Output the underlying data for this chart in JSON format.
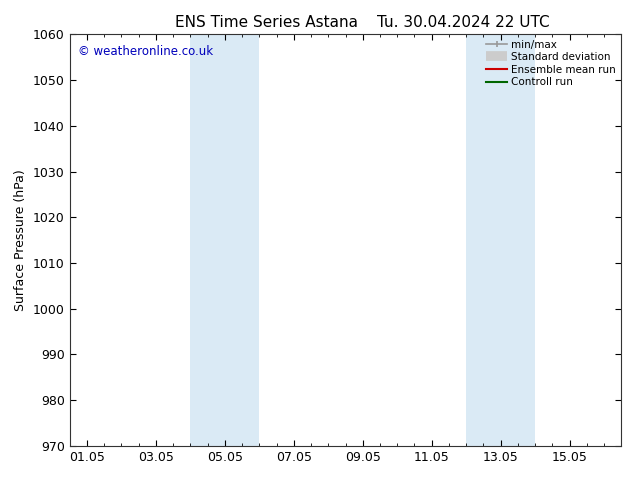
{
  "title_left": "ENS Time Series Astana",
  "title_right": "Tu. 30.04.2024 22 UTC",
  "ylabel": "Surface Pressure (hPa)",
  "ylim": [
    970,
    1060
  ],
  "yticks": [
    970,
    980,
    990,
    1000,
    1010,
    1020,
    1030,
    1040,
    1050,
    1060
  ],
  "xtick_labels": [
    "01.05",
    "03.05",
    "05.05",
    "07.05",
    "09.05",
    "11.05",
    "13.05",
    "15.05"
  ],
  "xtick_positions": [
    0,
    2,
    4,
    6,
    8,
    10,
    12,
    14
  ],
  "xlim": [
    -0.5,
    15.5
  ],
  "shade_bands": [
    {
      "xmin": 3.0,
      "xmax": 5.0
    },
    {
      "xmin": 11.0,
      "xmax": 13.0
    }
  ],
  "shade_color": "#daeaf5",
  "background_color": "#ffffff",
  "watermark": "© weatheronline.co.uk",
  "watermark_color": "#0000bb",
  "tick_fontsize": 9,
  "title_fontsize": 11,
  "ylabel_fontsize": 9
}
